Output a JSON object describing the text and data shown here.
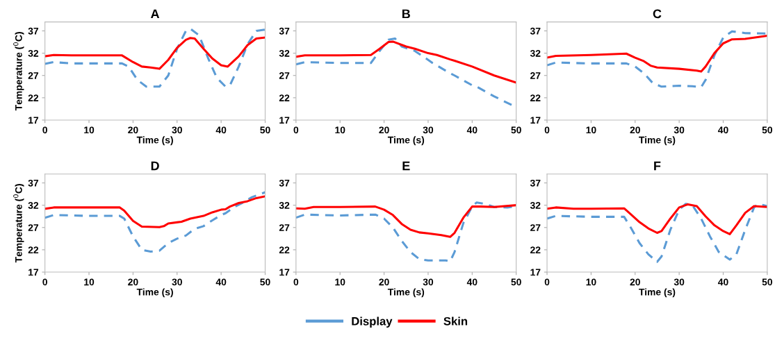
{
  "chart_data": [
    {
      "type": "line",
      "title": "A",
      "xlabel": "Time (s)",
      "ylabel": "Temperature ($^{0}$C)",
      "xlim": [
        0,
        50
      ],
      "ylim": [
        17,
        39
      ],
      "xticks": [
        0,
        10,
        20,
        30,
        40,
        50
      ],
      "yticks": [
        17,
        22,
        27,
        32,
        37
      ],
      "legend": "bottom",
      "series": [
        {
          "name": "Display",
          "color": "#5b9bd5",
          "line_style": "dashed",
          "x": [
            0,
            2,
            6,
            17.5,
            19,
            21,
            23,
            26,
            28,
            30,
            32,
            33,
            35,
            37,
            39,
            41,
            42,
            44,
            46,
            48,
            50
          ],
          "values": [
            29.6,
            30,
            29.7,
            29.7,
            29,
            26,
            24.5,
            24.5,
            27,
            33,
            37,
            37.5,
            36,
            31,
            26.5,
            24.5,
            24.8,
            29,
            34,
            37,
            37.3
          ]
        },
        {
          "name": "Skin",
          "color": "#ff0000",
          "line_style": "solid",
          "x": [
            0,
            2,
            6,
            10,
            17.5,
            20,
            22,
            24,
            26,
            28,
            30,
            32,
            33,
            34,
            36,
            38,
            40,
            41.5,
            44,
            46,
            48,
            50
          ],
          "values": [
            31.3,
            31.6,
            31.5,
            31.5,
            31.5,
            30,
            29,
            28.8,
            28.5,
            30.5,
            33.2,
            35,
            35.4,
            35.3,
            33,
            30.8,
            29.3,
            29,
            31.3,
            33.8,
            35.3,
            35.5
          ]
        }
      ]
    },
    {
      "type": "line",
      "title": "B",
      "xlabel": "Time (s)",
      "xlim": [
        0,
        50
      ],
      "ylim": [
        17,
        39
      ],
      "xticks": [
        0,
        10,
        20,
        30,
        40,
        50
      ],
      "yticks": [
        17,
        22,
        27,
        32,
        37
      ],
      "series": [
        {
          "color": "#5b9bd5",
          "line_style": "dashed",
          "x": [
            0,
            2,
            10,
            17,
            19,
            21,
            22.5,
            24,
            27,
            30,
            31,
            35,
            36,
            40,
            41,
            45,
            50
          ],
          "values": [
            29.5,
            30,
            29.8,
            29.8,
            32.5,
            35,
            35.3,
            33.5,
            32.5,
            30.5,
            29.8,
            27.5,
            27,
            24.8,
            24.5,
            22.3,
            19.9
          ]
        },
        {
          "color": "#ff0000",
          "line_style": "solid",
          "x": [
            0,
            2,
            10,
            17,
            19,
            21,
            22,
            25,
            27,
            30,
            32,
            35,
            36,
            40,
            45,
            50
          ],
          "values": [
            31.2,
            31.5,
            31.5,
            31.6,
            33,
            34.5,
            34.6,
            33.5,
            33,
            32,
            31.6,
            30.6,
            30.3,
            29,
            27,
            25.4
          ]
        }
      ]
    },
    {
      "type": "line",
      "title": "C",
      "xlabel": "Time (s)",
      "xlim": [
        0,
        50
      ],
      "ylim": [
        17,
        39
      ],
      "xticks": [
        0,
        10,
        20,
        30,
        40,
        50
      ],
      "yticks": [
        17,
        22,
        27,
        32,
        37
      ],
      "series": [
        {
          "color": "#5b9bd5",
          "line_style": "dashed",
          "x": [
            0,
            2,
            10,
            18,
            20,
            22,
            24,
            26,
            30,
            33,
            35,
            36,
            38,
            40,
            42,
            45,
            50
          ],
          "values": [
            29.3,
            29.9,
            29.7,
            29.7,
            29,
            27.5,
            25.3,
            24.5,
            24.7,
            24.6,
            24.4,
            26,
            31.5,
            35.5,
            36.9,
            36.5,
            36.4
          ]
        },
        {
          "color": "#ff0000",
          "line_style": "solid",
          "x": [
            0,
            2,
            10,
            18,
            20,
            22,
            23.5,
            25,
            30,
            34,
            35,
            36,
            38,
            40,
            42,
            45,
            50
          ],
          "values": [
            31,
            31.4,
            31.6,
            31.9,
            31,
            30.2,
            29.2,
            28.8,
            28.5,
            28.1,
            27.9,
            29,
            32,
            34.2,
            35.1,
            35.2,
            35.9
          ]
        }
      ]
    },
    {
      "type": "line",
      "title": "D",
      "xlabel": "Time (s)",
      "ylabel": "Temperature ($^{0}$C)",
      "xlim": [
        0,
        50
      ],
      "ylim": [
        17,
        39
      ],
      "xticks": [
        0,
        10,
        20,
        30,
        40,
        50
      ],
      "yticks": [
        17,
        22,
        27,
        32,
        37
      ],
      "series": [
        {
          "color": "#5b9bd5",
          "line_style": "dashed",
          "x": [
            0,
            2,
            10,
            17,
            18,
            20,
            22,
            24,
            26,
            28,
            30,
            32,
            34,
            36,
            38,
            40,
            41,
            43,
            45,
            47,
            50
          ],
          "values": [
            29.2,
            29.8,
            29.6,
            29.6,
            29,
            25,
            22,
            21.6,
            21.8,
            23.5,
            24.5,
            25.2,
            26.7,
            27.3,
            28.6,
            29.8,
            30.2,
            31.6,
            32.6,
            33.8,
            34.9
          ]
        },
        {
          "color": "#ff0000",
          "line_style": "solid",
          "x": [
            0,
            2,
            10,
            17,
            18,
            20,
            22,
            26,
            27,
            28,
            31,
            33,
            36,
            38,
            40,
            41,
            42,
            44,
            46,
            48,
            50
          ],
          "values": [
            31.2,
            31.5,
            31.5,
            31.5,
            30.8,
            28.5,
            27.2,
            27.1,
            27.3,
            27.9,
            28.3,
            29,
            29.6,
            30.4,
            31,
            31.1,
            31.7,
            32.5,
            32.9,
            33.6,
            34
          ]
        }
      ]
    },
    {
      "type": "line",
      "title": "E",
      "xlabel": "Time (s)",
      "xlim": [
        0,
        50
      ],
      "ylim": [
        17,
        39
      ],
      "xticks": [
        0,
        10,
        20,
        30,
        40,
        50
      ],
      "yticks": [
        17,
        22,
        27,
        32,
        37
      ],
      "series": [
        {
          "color": "#5b9bd5",
          "line_style": "dashed",
          "x": [
            0,
            2,
            10,
            18,
            20,
            22,
            24,
            26,
            28,
            30,
            34,
            35,
            36,
            38,
            40,
            41,
            43,
            45,
            48,
            50
          ],
          "values": [
            29.2,
            29.9,
            29.7,
            29.9,
            29,
            27,
            24,
            21.5,
            19.9,
            19.6,
            19.6,
            19.4,
            21.5,
            28,
            31.7,
            32.6,
            32.3,
            31.6,
            31.5,
            31.8
          ]
        },
        {
          "color": "#ff0000",
          "line_style": "solid",
          "x": [
            0,
            2,
            4,
            10,
            18,
            20,
            22,
            24,
            26,
            28,
            30,
            33,
            35,
            36,
            38,
            40,
            42,
            45,
            50
          ],
          "values": [
            31.3,
            31.2,
            31.6,
            31.6,
            31.7,
            31,
            29.8,
            27.8,
            26.5,
            25.9,
            25.7,
            25.3,
            24.9,
            25.8,
            29.2,
            31.7,
            31.7,
            31.6,
            32
          ]
        }
      ]
    },
    {
      "type": "line",
      "title": "F",
      "xlabel": "Time (s)",
      "xlim": [
        0,
        50
      ],
      "ylim": [
        17,
        39
      ],
      "xticks": [
        0,
        10,
        20,
        30,
        40,
        50
      ],
      "yticks": [
        17,
        22,
        27,
        32,
        37
      ],
      "series": [
        {
          "color": "#5b9bd5",
          "line_style": "dashed",
          "x": [
            0,
            2,
            10,
            17.5,
            19,
            21,
            23,
            25,
            26,
            28,
            30,
            31.5,
            33,
            35,
            37,
            39,
            41.5,
            43,
            45,
            47,
            48,
            50
          ],
          "values": [
            29,
            29.6,
            29.4,
            29.4,
            27,
            23.5,
            21,
            19.3,
            20.5,
            26.5,
            31,
            32.3,
            32,
            29,
            25,
            21.5,
            19.8,
            21,
            26.5,
            31.5,
            32.3,
            31.8
          ]
        },
        {
          "color": "#ff0000",
          "line_style": "solid",
          "x": [
            0,
            2,
            6,
            10,
            17.5,
            19,
            21,
            23,
            25,
            26,
            28,
            30,
            32,
            34,
            36,
            38,
            40,
            41.5,
            43,
            45,
            47,
            50
          ],
          "values": [
            31.2,
            31.5,
            31.2,
            31.2,
            31.3,
            30,
            28.2,
            26.8,
            25.8,
            26.2,
            29,
            31.5,
            32.2,
            31.8,
            29.5,
            27.5,
            26.2,
            25.5,
            27.5,
            30.3,
            31.8,
            31.6
          ]
        }
      ]
    }
  ]
}
